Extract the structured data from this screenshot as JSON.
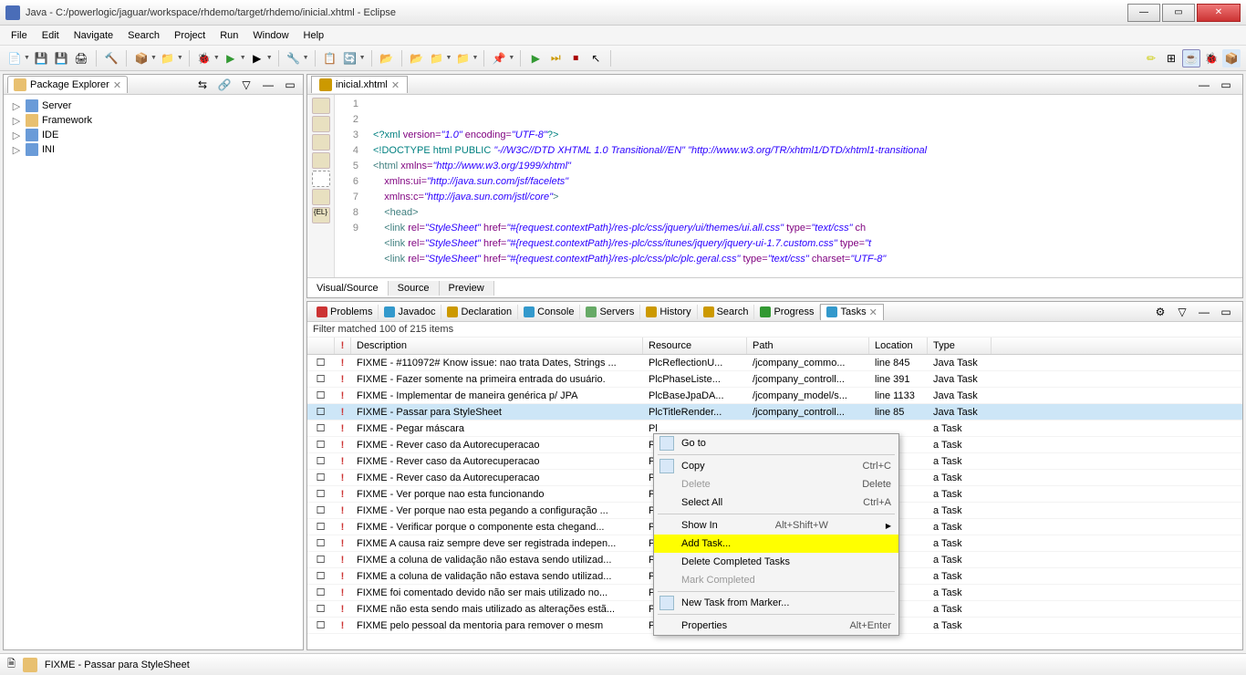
{
  "window": {
    "title": "Java - C:/powerlogic/jaguar/workspace/rhdemo/target/rhdemo/inicial.xhtml - Eclipse"
  },
  "menu": [
    "File",
    "Edit",
    "Navigate",
    "Search",
    "Project",
    "Run",
    "Window",
    "Help"
  ],
  "package_explorer": {
    "title": "Package Explorer",
    "items": [
      {
        "label": "Server",
        "icon": "blue"
      },
      {
        "label": "Framework",
        "icon": "yellow"
      },
      {
        "label": "IDE",
        "icon": "blue"
      },
      {
        "label": "INI",
        "icon": "blue"
      }
    ]
  },
  "editor": {
    "tab": "inicial.xhtml",
    "bottom_tabs": [
      "Visual/Source",
      "Source",
      "Preview"
    ],
    "active_bottom": "Visual/Source"
  },
  "views": {
    "tabs": [
      "Problems",
      "Javadoc",
      "Declaration",
      "Console",
      "Servers",
      "History",
      "Search",
      "Progress",
      "Tasks"
    ],
    "active": "Tasks"
  },
  "tasks": {
    "filter": "Filter matched 100 of 215 items",
    "columns": [
      "",
      "!",
      "Description",
      "Resource",
      "Path",
      "Location",
      "Type"
    ],
    "rows": [
      {
        "pri": "!",
        "desc": "FIXME - #110972# Know issue: nao trata Dates, Strings ...",
        "res": "PlcReflectionU...",
        "path": "/jcompany_commo...",
        "loc": "line 845",
        "type": "Java Task"
      },
      {
        "pri": "!",
        "desc": "FIXME - Fazer somente na primeira entrada do usuário.",
        "res": "PlcPhaseListe...",
        "path": "/jcompany_controll...",
        "loc": "line 391",
        "type": "Java Task"
      },
      {
        "pri": "!",
        "desc": "FIXME - Implementar de maneira genérica p/ JPA",
        "res": "PlcBaseJpaDA...",
        "path": "/jcompany_model/s...",
        "loc": "line 1133",
        "type": "Java Task"
      },
      {
        "pri": "!",
        "desc": "FIXME - Passar para StyleSheet",
        "res": "PlcTitleRender...",
        "path": "/jcompany_controll...",
        "loc": "line 85",
        "type": "Java Task",
        "selected": true
      },
      {
        "pri": "!",
        "desc": "FIXME - Pegar máscara",
        "res": "Pl",
        "path": "",
        "loc": "",
        "type": "a Task"
      },
      {
        "pri": "!",
        "desc": "FIXME - Rever caso da Autorecuperacao",
        "res": "Pl",
        "path": "",
        "loc": "",
        "type": "a Task"
      },
      {
        "pri": "!",
        "desc": "FIXME - Rever caso da Autorecuperacao",
        "res": "Pl",
        "path": "",
        "loc": "",
        "type": "a Task"
      },
      {
        "pri": "!",
        "desc": "FIXME - Rever caso da Autorecuperacao",
        "res": "Pl",
        "path": "",
        "loc": "",
        "type": "a Task"
      },
      {
        "pri": "!",
        "desc": "FIXME - Ver porque nao esta funcionando",
        "res": "Pl",
        "path": "",
        "loc": "",
        "type": "a Task"
      },
      {
        "pri": "!",
        "desc": "FIXME - Ver porque nao esta pegando a configuração ...",
        "res": "Pl",
        "path": "",
        "loc": "",
        "type": "a Task"
      },
      {
        "pri": "!",
        "desc": "FIXME - Verificar porque o componente esta chegand...",
        "res": "Pl",
        "path": "",
        "loc": "",
        "type": "a Task"
      },
      {
        "pri": "!",
        "desc": "FIXME A causa raiz sempre deve ser registrada indepen...",
        "res": "Pl",
        "path": "",
        "loc": "",
        "type": "a Task"
      },
      {
        "pri": "!",
        "desc": "FIXME a coluna de validação não estava sendo utilizad...",
        "res": "Pl",
        "path": "",
        "loc": "",
        "type": "a Task"
      },
      {
        "pri": "!",
        "desc": "FIXME a coluna de validação não estava sendo utilizad...",
        "res": "Pl",
        "path": "",
        "loc": "",
        "type": "a Task"
      },
      {
        "pri": "!",
        "desc": "FIXME foi comentado devido não ser mais utilizado no...",
        "res": "Pa",
        "path": "",
        "loc": "",
        "type": "a Task"
      },
      {
        "pri": "!",
        "desc": "FIXME não esta sendo mais utilizado as alterações estã...",
        "res": "Pl",
        "path": "",
        "loc": "",
        "type": "a Task"
      },
      {
        "pri": "!",
        "desc": "FIXME pelo pessoal da mentoria para remover o mesm",
        "res": "Pl",
        "path": "",
        "loc": "",
        "type": "a Task"
      }
    ]
  },
  "context_menu": {
    "items": [
      {
        "label": "Go to",
        "icon": "goto"
      },
      {
        "sep": true
      },
      {
        "label": "Copy",
        "icon": "copy",
        "shortcut": "Ctrl+C"
      },
      {
        "label": "Delete",
        "disabled": true,
        "shortcut": "Delete"
      },
      {
        "label": "Select All",
        "shortcut": "Ctrl+A"
      },
      {
        "sep": true
      },
      {
        "label": "Show In",
        "shortcut": "Alt+Shift+W",
        "submenu": true
      },
      {
        "label": "Add Task...",
        "highlight": true
      },
      {
        "label": "Delete Completed Tasks"
      },
      {
        "label": "Mark Completed",
        "disabled": true
      },
      {
        "sep": true
      },
      {
        "label": "New Task from Marker...",
        "icon": "newtask"
      },
      {
        "sep": true
      },
      {
        "label": "Properties",
        "shortcut": "Alt+Enter"
      }
    ]
  },
  "statusbar": {
    "text": "FIXME - Passar para StyleSheet"
  }
}
